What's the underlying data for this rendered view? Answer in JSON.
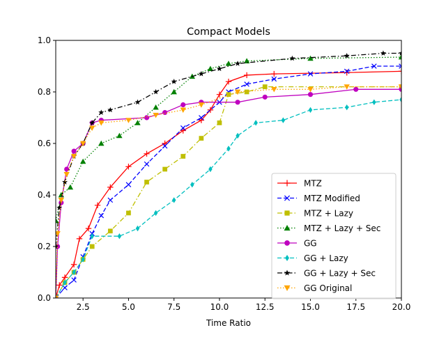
{
  "chart_data": {
    "type": "line",
    "title": "Compact Models",
    "xlabel": "Time Ratio",
    "ylabel": "",
    "xlim": [
      1.0,
      20.0
    ],
    "ylim": [
      0.0,
      1.0
    ],
    "x_ticks": [
      "2.5",
      "5.0",
      "7.5",
      "10.0",
      "12.5",
      "15.0",
      "17.5",
      "20.0"
    ],
    "y_ticks": [
      "0.0",
      "0.2",
      "0.4",
      "0.6",
      "0.8",
      "1.0"
    ],
    "grid": false,
    "legend_position": "lower-right",
    "series": [
      {
        "name": "MTZ",
        "color": "#ff0000",
        "marker": "plus",
        "dash": "solid",
        "points": [
          [
            1.0,
            0.0
          ],
          [
            1.2,
            0.05
          ],
          [
            1.5,
            0.08
          ],
          [
            2.0,
            0.13
          ],
          [
            2.3,
            0.23
          ],
          [
            2.8,
            0.27
          ],
          [
            3.3,
            0.36
          ],
          [
            4.0,
            0.43
          ],
          [
            5.0,
            0.51
          ],
          [
            6.0,
            0.56
          ],
          [
            7.0,
            0.6
          ],
          [
            8.0,
            0.65
          ],
          [
            9.0,
            0.69
          ],
          [
            9.5,
            0.73
          ],
          [
            10.0,
            0.79
          ],
          [
            10.5,
            0.84
          ],
          [
            11.5,
            0.865
          ],
          [
            13.0,
            0.87
          ],
          [
            17.0,
            0.875
          ],
          [
            20.0,
            0.88
          ]
        ]
      },
      {
        "name": "MTZ Modified",
        "color": "#0000ff",
        "marker": "x",
        "dash": "dashed",
        "points": [
          [
            1.0,
            0.0
          ],
          [
            1.5,
            0.04
          ],
          [
            2.0,
            0.07
          ],
          [
            2.5,
            0.16
          ],
          [
            3.0,
            0.25
          ],
          [
            3.5,
            0.32
          ],
          [
            4.0,
            0.38
          ],
          [
            5.0,
            0.44
          ],
          [
            6.0,
            0.52
          ],
          [
            7.0,
            0.59
          ],
          [
            8.0,
            0.66
          ],
          [
            9.0,
            0.7
          ],
          [
            10.0,
            0.76
          ],
          [
            10.5,
            0.8
          ],
          [
            11.5,
            0.83
          ],
          [
            13.0,
            0.85
          ],
          [
            15.0,
            0.87
          ],
          [
            17.0,
            0.88
          ],
          [
            18.5,
            0.9
          ],
          [
            20.0,
            0.9
          ]
        ]
      },
      {
        "name": "MTZ + Lazy",
        "color": "#bfbf00",
        "marker": "square",
        "dash": "dashdot",
        "points": [
          [
            1.0,
            0.0
          ],
          [
            1.5,
            0.06
          ],
          [
            2.0,
            0.1
          ],
          [
            2.5,
            0.15
          ],
          [
            3.0,
            0.2
          ],
          [
            4.0,
            0.26
          ],
          [
            5.0,
            0.33
          ],
          [
            6.0,
            0.45
          ],
          [
            7.0,
            0.5
          ],
          [
            8.0,
            0.55
          ],
          [
            9.0,
            0.62
          ],
          [
            10.0,
            0.68
          ],
          [
            10.5,
            0.79
          ],
          [
            11.5,
            0.8
          ],
          [
            12.5,
            0.82
          ],
          [
            20.0,
            0.82
          ]
        ]
      },
      {
        "name": "MTZ + Lazy + Sec",
        "color": "#008000",
        "marker": "triangle-up",
        "dash": "dotted",
        "points": [
          [
            1.0,
            0.3
          ],
          [
            1.3,
            0.4
          ],
          [
            1.8,
            0.43
          ],
          [
            2.5,
            0.53
          ],
          [
            3.5,
            0.6
          ],
          [
            4.5,
            0.63
          ],
          [
            5.5,
            0.68
          ],
          [
            6.5,
            0.74
          ],
          [
            7.5,
            0.8
          ],
          [
            8.5,
            0.86
          ],
          [
            9.5,
            0.89
          ],
          [
            10.5,
            0.91
          ],
          [
            11.5,
            0.92
          ],
          [
            15.0,
            0.93
          ],
          [
            20.0,
            0.935
          ]
        ]
      },
      {
        "name": "GG",
        "color": "#bf00bf",
        "marker": "circle",
        "dash": "solid",
        "points": [
          [
            1.0,
            0.0
          ],
          [
            1.1,
            0.2
          ],
          [
            1.3,
            0.37
          ],
          [
            1.6,
            0.5
          ],
          [
            2.0,
            0.57
          ],
          [
            2.5,
            0.6
          ],
          [
            3.0,
            0.68
          ],
          [
            3.5,
            0.69
          ],
          [
            6.0,
            0.7
          ],
          [
            7.0,
            0.72
          ],
          [
            8.0,
            0.75
          ],
          [
            9.0,
            0.76
          ],
          [
            11.0,
            0.76
          ],
          [
            12.5,
            0.78
          ],
          [
            15.0,
            0.79
          ],
          [
            17.5,
            0.81
          ],
          [
            20.0,
            0.81
          ]
        ]
      },
      {
        "name": "GG + Lazy",
        "color": "#00bfbf",
        "marker": "diamond",
        "dash": "dashed",
        "points": [
          [
            1.0,
            0.0
          ],
          [
            1.5,
            0.06
          ],
          [
            2.0,
            0.1
          ],
          [
            2.5,
            0.15
          ],
          [
            3.0,
            0.24
          ],
          [
            4.5,
            0.24
          ],
          [
            5.5,
            0.27
          ],
          [
            6.5,
            0.33
          ],
          [
            7.5,
            0.38
          ],
          [
            8.5,
            0.44
          ],
          [
            9.5,
            0.5
          ],
          [
            10.5,
            0.58
          ],
          [
            11.0,
            0.63
          ],
          [
            12.0,
            0.68
          ],
          [
            13.5,
            0.69
          ],
          [
            15.0,
            0.73
          ],
          [
            17.0,
            0.74
          ],
          [
            18.5,
            0.76
          ],
          [
            20.0,
            0.77
          ]
        ]
      },
      {
        "name": "GG + Lazy + Sec",
        "color": "#000000",
        "marker": "star",
        "dash": "dashdot",
        "points": [
          [
            1.0,
            0.2
          ],
          [
            1.2,
            0.35
          ],
          [
            1.5,
            0.45
          ],
          [
            2.0,
            0.55
          ],
          [
            2.5,
            0.6
          ],
          [
            3.0,
            0.68
          ],
          [
            3.5,
            0.72
          ],
          [
            4.0,
            0.73
          ],
          [
            5.5,
            0.76
          ],
          [
            6.5,
            0.8
          ],
          [
            7.5,
            0.84
          ],
          [
            9.0,
            0.87
          ],
          [
            10.0,
            0.89
          ],
          [
            11.0,
            0.91
          ],
          [
            14.0,
            0.93
          ],
          [
            17.0,
            0.94
          ],
          [
            19.0,
            0.95
          ],
          [
            20.0,
            0.95
          ]
        ]
      },
      {
        "name": "GG Original",
        "color": "#ffa500",
        "marker": "triangle-down",
        "dash": "dotted",
        "points": [
          [
            1.0,
            0.0
          ],
          [
            1.1,
            0.25
          ],
          [
            1.3,
            0.38
          ],
          [
            1.6,
            0.48
          ],
          [
            2.0,
            0.55
          ],
          [
            2.5,
            0.6
          ],
          [
            3.0,
            0.66
          ],
          [
            3.5,
            0.68
          ],
          [
            5.0,
            0.69
          ],
          [
            6.5,
            0.71
          ],
          [
            8.0,
            0.73
          ],
          [
            9.0,
            0.75
          ],
          [
            11.0,
            0.8
          ],
          [
            13.0,
            0.81
          ],
          [
            15.0,
            0.81
          ],
          [
            17.0,
            0.82
          ],
          [
            20.0,
            0.82
          ]
        ]
      }
    ]
  }
}
